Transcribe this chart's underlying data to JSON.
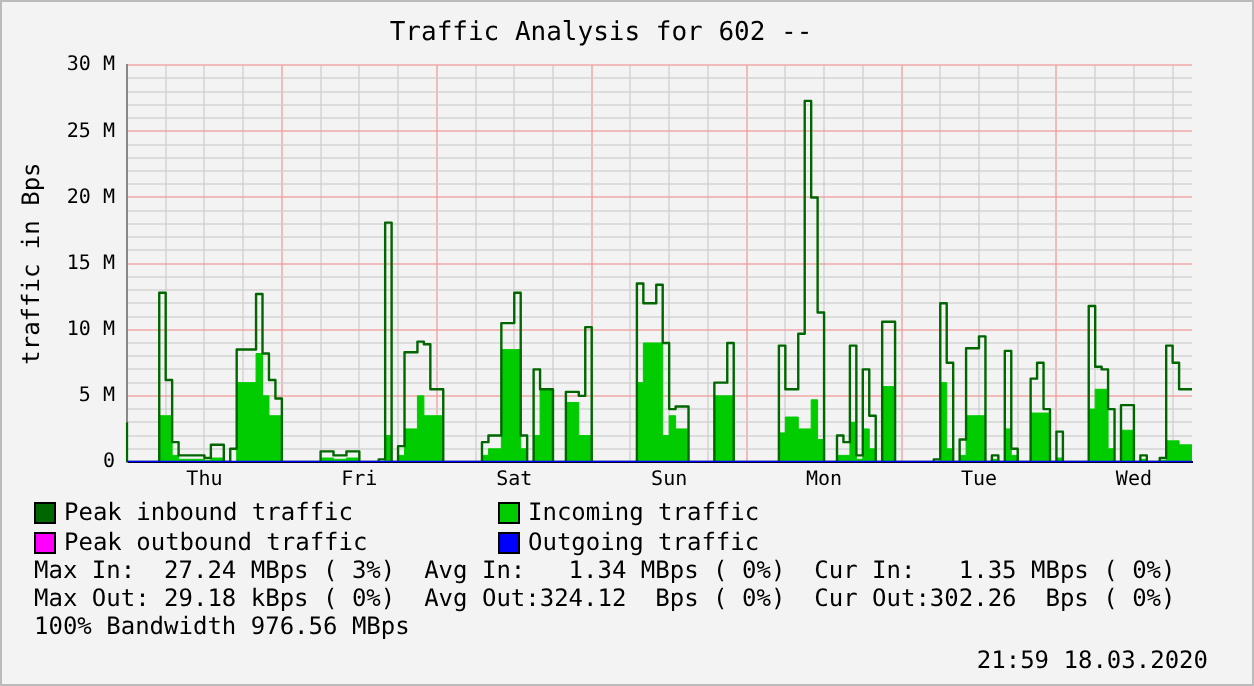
{
  "chart_data": {
    "type": "step",
    "title": "Traffic Analysis for 602 --",
    "ylabel": "traffic in Bps",
    "categories": [
      null,
      null,
      null,
      null,
      null,
      null,
      null,
      null,
      null,
      null,
      null,
      null,
      "Thu",
      null,
      null,
      null,
      null,
      null,
      null,
      null,
      null,
      null,
      null,
      null,
      null,
      null,
      null,
      null,
      null,
      null,
      null,
      null,
      null,
      null,
      null,
      null,
      "Fri",
      null,
      null,
      null,
      null,
      null,
      null,
      null,
      null,
      null,
      null,
      null,
      null,
      null,
      null,
      null,
      null,
      null,
      null,
      null,
      null,
      null,
      null,
      null,
      "Sat",
      null,
      null,
      null,
      null,
      null,
      null,
      null,
      null,
      null,
      null,
      null,
      null,
      null,
      null,
      null,
      null,
      null,
      null,
      null,
      null,
      null,
      null,
      null,
      "Sun",
      null,
      null,
      null,
      null,
      null,
      null,
      null,
      null,
      null,
      null,
      null,
      null,
      null,
      null,
      null,
      null,
      null,
      null,
      null,
      null,
      null,
      null,
      null,
      "Mon",
      null,
      null,
      null,
      null,
      null,
      null,
      null,
      null,
      null,
      null,
      null,
      null,
      null,
      null,
      null,
      null,
      null,
      null,
      null,
      null,
      null,
      null,
      null,
      "Tue",
      null,
      null,
      null,
      null,
      null,
      null,
      null,
      null,
      null,
      null,
      null,
      null,
      null,
      null,
      null,
      null,
      null,
      null,
      null,
      null,
      null,
      null,
      null,
      "Wed",
      null,
      null,
      null,
      null,
      null,
      null,
      null,
      null,
      null
    ],
    "series": [
      {
        "name": "Peak inbound traffic",
        "color": "#006600",
        "values": [
          3,
          0,
          0,
          0,
          0,
          0,
          12.8,
          6.2,
          1.5,
          0.5,
          0.5,
          0.5,
          0.5,
          0.3,
          1.3,
          1.3,
          0,
          1,
          8.5,
          8.5,
          8.5,
          12.7,
          8.2,
          6.2,
          4.8,
          0,
          0,
          0,
          0,
          0,
          0,
          0.8,
          0.8,
          0.5,
          0.5,
          0.8,
          0.8,
          0,
          0,
          0,
          0.2,
          18.1,
          0,
          1.2,
          8.3,
          8.3,
          9.1,
          8.9,
          5.5,
          5.5,
          0,
          0,
          0,
          0,
          0,
          0,
          1.5,
          2,
          2,
          10.5,
          10.5,
          12.8,
          2,
          0,
          7,
          5.5,
          5.5,
          0,
          0,
          5.3,
          5.3,
          5,
          10.2,
          0,
          0,
          0,
          0,
          0,
          0,
          0,
          13.5,
          12,
          12,
          13.4,
          9,
          4,
          4.2,
          4.2,
          0,
          0,
          0,
          0,
          6,
          6,
          9,
          0,
          0,
          0,
          0,
          0,
          0,
          0,
          8.8,
          5.5,
          5.5,
          9.7,
          27.3,
          20,
          11.3,
          0,
          0,
          2,
          1.5,
          8.8,
          0.5,
          7,
          3.5,
          0,
          10.6,
          10.6,
          0,
          0,
          0,
          0,
          0,
          0,
          0.2,
          12,
          7.5,
          0,
          1.7,
          8.6,
          8.6,
          9.5,
          0,
          0.5,
          0,
          8.4,
          1,
          0,
          0,
          6.3,
          7.5,
          4,
          0,
          2.3,
          0,
          0,
          0,
          0,
          11.8,
          7.2,
          7,
          4,
          0,
          4.3,
          4.3,
          0,
          0.5,
          0,
          0,
          0.3,
          8.8,
          7.5,
          5.5,
          5.5
        ]
      },
      {
        "name": "Incoming traffic",
        "type": "area",
        "color": "#00cc00",
        "values": [
          0,
          0,
          0,
          0,
          0,
          0,
          3.5,
          3.5,
          0.5,
          0.2,
          0.2,
          0.2,
          0.2,
          0.1,
          0.3,
          0.3,
          0,
          0,
          6,
          6,
          6,
          8.2,
          5,
          3.5,
          3.5,
          0,
          0,
          0,
          0,
          0,
          0,
          0.3,
          0.3,
          0.2,
          0.2,
          0.3,
          0.3,
          0,
          0,
          0,
          0,
          2,
          0,
          0.5,
          2.5,
          2.5,
          5,
          3.5,
          3.5,
          3.5,
          0,
          0,
          0,
          0,
          0,
          0,
          0.5,
          1,
          1,
          8.5,
          8.5,
          8.5,
          1,
          0,
          2,
          5.5,
          5.5,
          0,
          0,
          4.5,
          4.5,
          2,
          2,
          0,
          0,
          0,
          0,
          0,
          0,
          0,
          6,
          9,
          9,
          9,
          2,
          3.5,
          2.5,
          2.5,
          0,
          0,
          0,
          0,
          5,
          5,
          5,
          0,
          0,
          0,
          0,
          0,
          0,
          0,
          2.2,
          3.4,
          3.4,
          2.5,
          2.5,
          4.7,
          1.7,
          0,
          0,
          0.5,
          0.5,
          3,
          0.2,
          2.5,
          1,
          0,
          5.7,
          5.7,
          0,
          0,
          0,
          0,
          0,
          0,
          0,
          6,
          1,
          0,
          0.5,
          3.5,
          3.5,
          3.5,
          0,
          0.2,
          0,
          2.5,
          0.5,
          0,
          0,
          3.7,
          3.7,
          3.7,
          0,
          0.3,
          0,
          0,
          0,
          0,
          4,
          5.5,
          5.5,
          1,
          0,
          2.4,
          2.4,
          0,
          0.2,
          0,
          0,
          0.1,
          1.6,
          1.6,
          1.3,
          1.3
        ]
      },
      {
        "name": "Peak outbound traffic",
        "color": "#ff00ff",
        "values": [
          null,
          null,
          null,
          null,
          null,
          null,
          null,
          null,
          null,
          null,
          null,
          null,
          null,
          null,
          null,
          null,
          null,
          null,
          null,
          null,
          null,
          null,
          null,
          null,
          null,
          null,
          null,
          null,
          null,
          null,
          null,
          null,
          null,
          null,
          null,
          null,
          null,
          null,
          null,
          null,
          null,
          null,
          null,
          null,
          null,
          null,
          null,
          null,
          null,
          null,
          null,
          null,
          null,
          null,
          null,
          null,
          null,
          null,
          null,
          null,
          null,
          null,
          null,
          null,
          null,
          null,
          null,
          null,
          null,
          null,
          null,
          null,
          null,
          null,
          null,
          null,
          null,
          null,
          null,
          null,
          null,
          null,
          null,
          null,
          null,
          null,
          null,
          null,
          null,
          null,
          null,
          null,
          null,
          null,
          null,
          null,
          null,
          null,
          null,
          null,
          null,
          null,
          null,
          null,
          null,
          null,
          null,
          null,
          null,
          null,
          null,
          null,
          null,
          null,
          null,
          null,
          null,
          null,
          null,
          null,
          null,
          null,
          null,
          null,
          null,
          null,
          null,
          null,
          null,
          null,
          null,
          null,
          null,
          null,
          null,
          null,
          null,
          null,
          null,
          null,
          null,
          null,
          null,
          null,
          null,
          null,
          null,
          null,
          null,
          null,
          null,
          null,
          null,
          null,
          null,
          null,
          null,
          null,
          null,
          null,
          null,
          null,
          null,
          null,
          null,
          null
        ]
      },
      {
        "name": "Outgoing traffic",
        "color": "#0000ff",
        "values": [
          0,
          0,
          0,
          0,
          0,
          0,
          0,
          0,
          0,
          0,
          0,
          0,
          0,
          0,
          0,
          0,
          0,
          0,
          0,
          0,
          0,
          0,
          0,
          0,
          0,
          0,
          0,
          0,
          0,
          0,
          0,
          0,
          0,
          0,
          0,
          0,
          0,
          0,
          0,
          0,
          0,
          0,
          0,
          0,
          0,
          0,
          0,
          0,
          0,
          0,
          0,
          0,
          0,
          0,
          0,
          0,
          0,
          0,
          0,
          0,
          0,
          0,
          0,
          0,
          0,
          0,
          0,
          0,
          0,
          0,
          0,
          0,
          0,
          0,
          0,
          0,
          0,
          0,
          0,
          0,
          0,
          0,
          0,
          0,
          0,
          0,
          0,
          0,
          0,
          0,
          0,
          0,
          0,
          0,
          0,
          0,
          0,
          0,
          0,
          0,
          0,
          0,
          0,
          0,
          0,
          0,
          0,
          0,
          0,
          0,
          0,
          0,
          0,
          0,
          0,
          0,
          0,
          0,
          0,
          0,
          0,
          0,
          0,
          0,
          0,
          0,
          0,
          0,
          0,
          0,
          0,
          0,
          0,
          0,
          0,
          0,
          0,
          0,
          0,
          0,
          0,
          0,
          0,
          0,
          0,
          0,
          0,
          0,
          0,
          0,
          0,
          0,
          0,
          0,
          0,
          0,
          0,
          0,
          0,
          0,
          0,
          0,
          0,
          0,
          0,
          0
        ]
      }
    ],
    "ylim": [
      0,
      30
    ],
    "yticks": [
      0,
      {
        "value": 1,
        "label": null
      },
      {
        "value": 2,
        "label": null
      },
      {
        "value": 3,
        "label": null
      },
      {
        "value": 4,
        "label": null
      },
      {
        "value": 5,
        "label": "5 M"
      },
      {
        "value": 6,
        "label": null
      },
      {
        "value": 7,
        "label": null
      },
      {
        "value": 8,
        "label": null
      },
      {
        "value": 9,
        "label": null
      },
      {
        "value": 10,
        "label": "10 M"
      },
      {
        "value": 11,
        "label": null
      },
      {
        "value": 12,
        "label": null
      },
      {
        "value": 13,
        "label": null
      },
      {
        "value": 14,
        "label": null
      },
      {
        "value": 15,
        "label": "15 M"
      },
      {
        "value": 16,
        "label": null
      },
      {
        "value": 17,
        "label": null
      },
      {
        "value": 18,
        "label": null
      },
      {
        "value": 19,
        "label": null
      },
      {
        "value": 20,
        "label": "20 M"
      },
      {
        "value": 21,
        "label": null
      },
      {
        "value": 22,
        "label": null
      },
      {
        "value": 23,
        "label": null
      },
      {
        "value": 24,
        "label": null
      },
      {
        "value": 25,
        "label": "25 M"
      },
      {
        "value": 26,
        "label": null
      },
      {
        "value": 27,
        "label": null
      },
      {
        "value": 28,
        "label": null
      },
      {
        "value": 29,
        "label": null
      },
      {
        "value": 30,
        "label": "30 M"
      }
    ],
    "grid": true,
    "legend": "bottom",
    "annotations": [
      "Max In:  27.24 MBps ( 3%)  Avg In:   1.34 MBps ( 0%)  Cur In:   1.35 MBps ( 0%)",
      "Max Out: 29.18 kBps ( 0%)  Avg Out:324.12  Bps ( 0%)  Cur Out:302.26  Bps ( 0%)",
      "100% Bandwidth 976.56 MBps",
      "21:59 18.03.2020"
    ]
  }
}
